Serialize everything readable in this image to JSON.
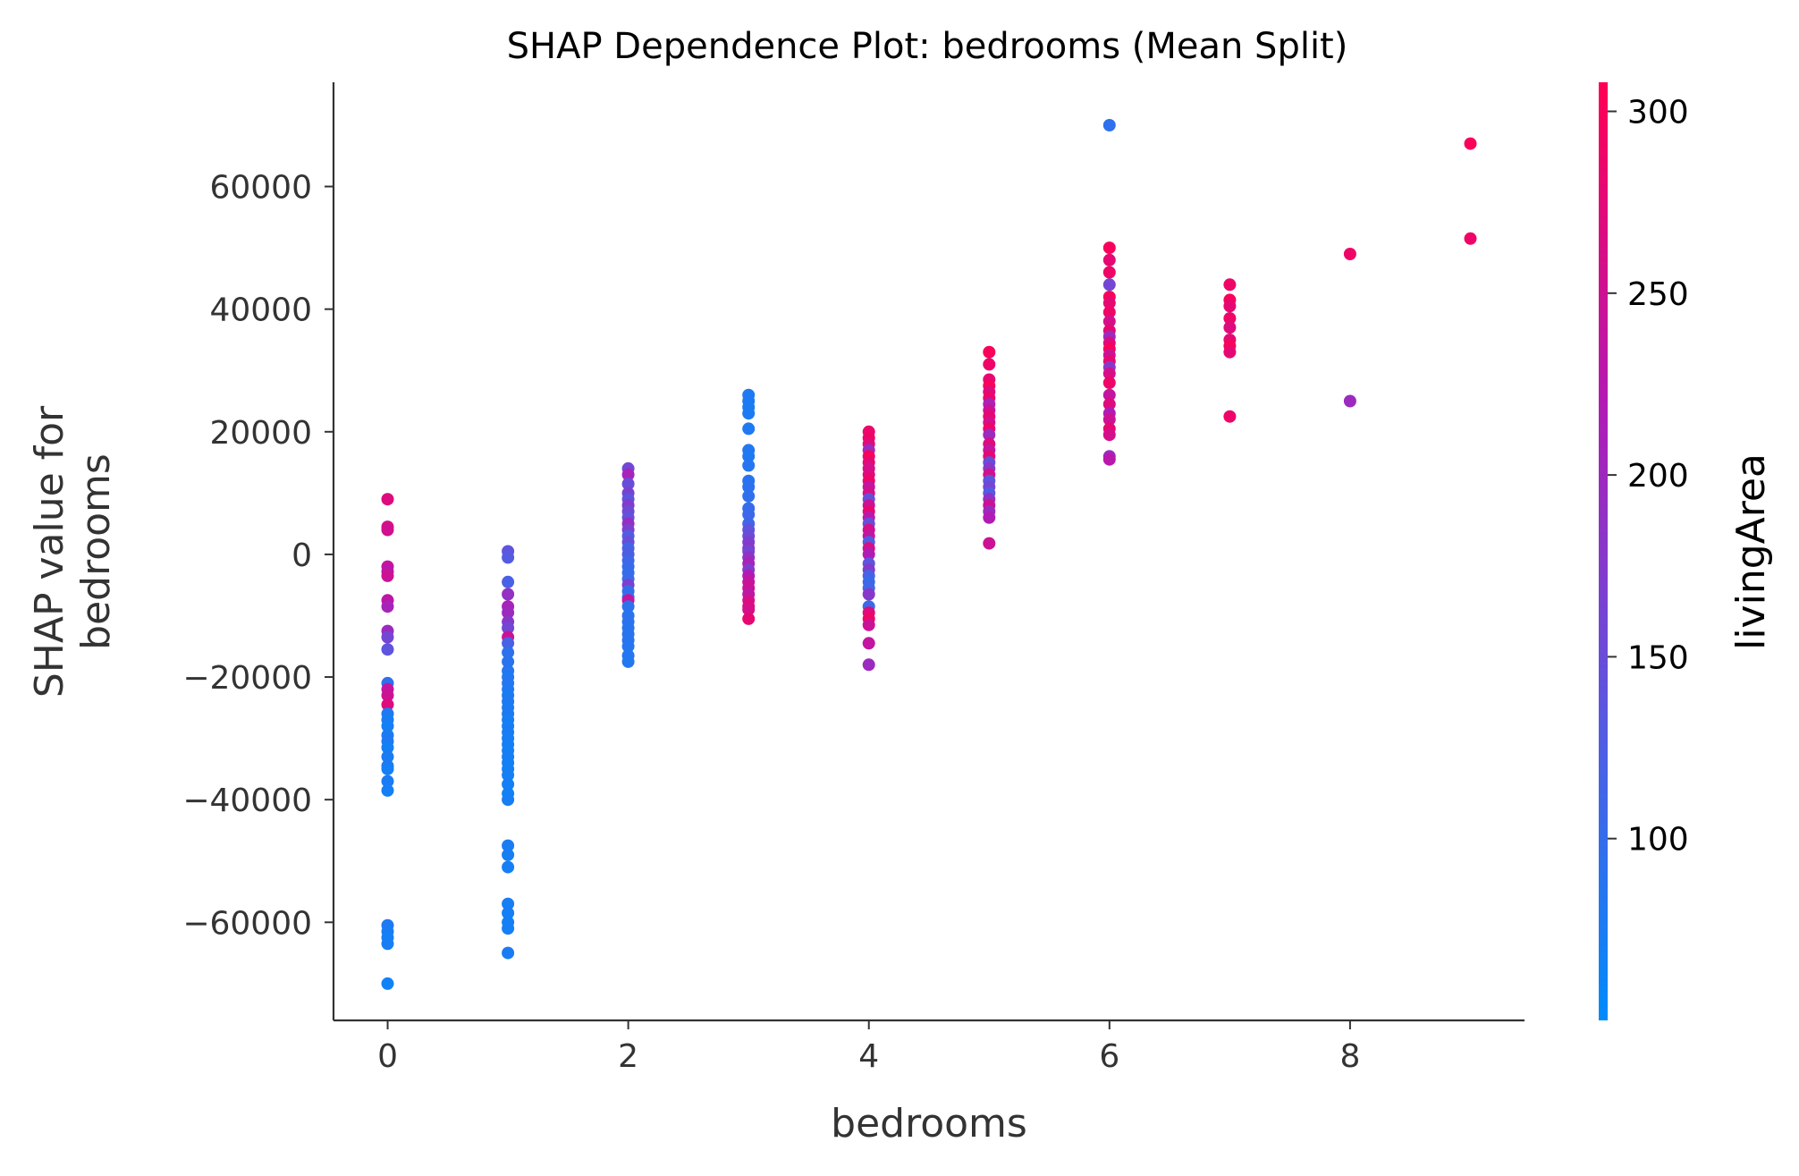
{
  "chart_data": {
    "type": "scatter",
    "title": "SHAP Dependence Plot: bedrooms (Mean Split)",
    "xlabel": "bedrooms",
    "ylabel_lines": [
      "SHAP value for",
      "bedrooms"
    ],
    "xlim": [
      -0.45,
      9.45
    ],
    "ylim": [
      -76000,
      77000
    ],
    "xticks": [
      0,
      2,
      4,
      6,
      8
    ],
    "xtick_labels": [
      "0",
      "2",
      "4",
      "6",
      "8"
    ],
    "yticks": [
      -60000,
      -40000,
      -20000,
      0,
      20000,
      40000,
      60000
    ],
    "ytick_labels": [
      "−60000",
      "−40000",
      "−20000",
      "0",
      "20000",
      "40000",
      "60000"
    ],
    "grid": false,
    "colorbar": {
      "label": "livingArea",
      "range": [
        50,
        308
      ],
      "ticks": [
        100,
        150,
        200,
        250,
        300
      ],
      "tick_labels": [
        "100",
        "150",
        "200",
        "250",
        "300"
      ],
      "colors": [
        "#008bfb",
        "#5a57e0",
        "#b31ab4",
        "#ff0052"
      ]
    },
    "points": [
      [
        0,
        9000,
        270
      ],
      [
        0,
        4500,
        260
      ],
      [
        0,
        4000,
        255
      ],
      [
        0,
        -2000,
        240
      ],
      [
        0,
        -2800,
        230
      ],
      [
        0,
        -3500,
        250
      ],
      [
        0,
        -7500,
        235
      ],
      [
        0,
        -8500,
        210
      ],
      [
        0,
        -12500,
        200
      ],
      [
        0,
        -13500,
        160
      ],
      [
        0,
        -15500,
        140
      ],
      [
        0,
        -21000,
        95
      ],
      [
        0,
        -22000,
        240
      ],
      [
        0,
        -23000,
        250
      ],
      [
        0,
        -24500,
        270
      ],
      [
        0,
        -26000,
        80
      ],
      [
        0,
        -27000,
        75
      ],
      [
        0,
        -28000,
        70
      ],
      [
        0,
        -29500,
        75
      ],
      [
        0,
        -30500,
        80
      ],
      [
        0,
        -31500,
        70
      ],
      [
        0,
        -33000,
        75
      ],
      [
        0,
        -34500,
        80
      ],
      [
        0,
        -35000,
        70
      ],
      [
        0,
        -37000,
        75
      ],
      [
        0,
        -38500,
        70
      ],
      [
        0,
        -60500,
        80
      ],
      [
        0,
        -61500,
        75
      ],
      [
        0,
        -62500,
        70
      ],
      [
        0,
        -63500,
        72
      ],
      [
        0,
        -70000,
        65
      ],
      [
        1,
        500,
        140
      ],
      [
        1,
        -500,
        130
      ],
      [
        1,
        -4500,
        120
      ],
      [
        1,
        -6500,
        190
      ],
      [
        1,
        -8500,
        210
      ],
      [
        1,
        -9500,
        200
      ],
      [
        1,
        -11000,
        180
      ],
      [
        1,
        -12000,
        160
      ],
      [
        1,
        -13500,
        250
      ],
      [
        1,
        -14500,
        120
      ],
      [
        1,
        -16000,
        95
      ],
      [
        1,
        -17500,
        90
      ],
      [
        1,
        -19000,
        85
      ],
      [
        1,
        -20000,
        80
      ],
      [
        1,
        -21000,
        85
      ],
      [
        1,
        -22000,
        80
      ],
      [
        1,
        -23000,
        75
      ],
      [
        1,
        -24000,
        80
      ],
      [
        1,
        -25000,
        75
      ],
      [
        1,
        -26000,
        78
      ],
      [
        1,
        -27000,
        72
      ],
      [
        1,
        -28000,
        70
      ],
      [
        1,
        -29000,
        75
      ],
      [
        1,
        -30000,
        72
      ],
      [
        1,
        -31000,
        70
      ],
      [
        1,
        -32000,
        68
      ],
      [
        1,
        -33000,
        72
      ],
      [
        1,
        -34000,
        70
      ],
      [
        1,
        -35000,
        68
      ],
      [
        1,
        -36000,
        72
      ],
      [
        1,
        -37500,
        70
      ],
      [
        1,
        -39000,
        68
      ],
      [
        1,
        -40000,
        72
      ],
      [
        1,
        -47500,
        75
      ],
      [
        1,
        -49000,
        72
      ],
      [
        1,
        -51000,
        70
      ],
      [
        1,
        -57000,
        72
      ],
      [
        1,
        -58500,
        70
      ],
      [
        1,
        -60000,
        68
      ],
      [
        1,
        -61000,
        70
      ],
      [
        1,
        -65000,
        75
      ],
      [
        2,
        14000,
        160
      ],
      [
        2,
        13000,
        210
      ],
      [
        2,
        11500,
        150
      ],
      [
        2,
        10000,
        165
      ],
      [
        2,
        9000,
        140
      ],
      [
        2,
        8000,
        175
      ],
      [
        2,
        7000,
        155
      ],
      [
        2,
        6000,
        145
      ],
      [
        2,
        5000,
        195
      ],
      [
        2,
        4000,
        170
      ],
      [
        2,
        3000,
        130
      ],
      [
        2,
        2000,
        150
      ],
      [
        2,
        1000,
        115
      ],
      [
        2,
        0,
        125
      ],
      [
        2,
        -1000,
        110
      ],
      [
        2,
        -2000,
        105
      ],
      [
        2,
        -3000,
        100
      ],
      [
        2,
        -4000,
        105
      ],
      [
        2,
        -5000,
        170
      ],
      [
        2,
        -6000,
        100
      ],
      [
        2,
        -7000,
        95
      ],
      [
        2,
        -7500,
        240
      ],
      [
        2,
        -8500,
        95
      ],
      [
        2,
        -10000,
        90
      ],
      [
        2,
        -11000,
        92
      ],
      [
        2,
        -12000,
        88
      ],
      [
        2,
        -13000,
        90
      ],
      [
        2,
        -14000,
        88
      ],
      [
        2,
        -15000,
        85
      ],
      [
        2,
        -16500,
        85
      ],
      [
        2,
        -17500,
        82
      ],
      [
        3,
        26000,
        80
      ],
      [
        3,
        25000,
        78
      ],
      [
        3,
        24000,
        76
      ],
      [
        3,
        23000,
        78
      ],
      [
        3,
        20500,
        80
      ],
      [
        3,
        17000,
        82
      ],
      [
        3,
        16000,
        80
      ],
      [
        3,
        14500,
        85
      ],
      [
        3,
        12000,
        90
      ],
      [
        3,
        11000,
        92
      ],
      [
        3,
        9500,
        95
      ],
      [
        3,
        7500,
        100
      ],
      [
        3,
        6500,
        105
      ],
      [
        3,
        5000,
        110
      ],
      [
        3,
        4000,
        140
      ],
      [
        3,
        3000,
        150
      ],
      [
        3,
        2000,
        170
      ],
      [
        3,
        1000,
        180
      ],
      [
        3,
        500,
        160
      ],
      [
        3,
        -500,
        190
      ],
      [
        3,
        -1500,
        210
      ],
      [
        3,
        -2500,
        175
      ],
      [
        3,
        -3500,
        220
      ],
      [
        3,
        -4500,
        240
      ],
      [
        3,
        -5500,
        250
      ],
      [
        3,
        -6500,
        230
      ],
      [
        3,
        -7500,
        260
      ],
      [
        3,
        -8500,
        270
      ],
      [
        3,
        -9000,
        260
      ],
      [
        3,
        -10500,
        280
      ],
      [
        4,
        20000,
        285
      ],
      [
        4,
        19000,
        290
      ],
      [
        4,
        18000,
        275
      ],
      [
        4,
        17000,
        200
      ],
      [
        4,
        16000,
        300
      ],
      [
        4,
        15000,
        280
      ],
      [
        4,
        14000,
        260
      ],
      [
        4,
        13000,
        270
      ],
      [
        4,
        12000,
        290
      ],
      [
        4,
        11000,
        240
      ],
      [
        4,
        10000,
        260
      ],
      [
        4,
        9000,
        150
      ],
      [
        4,
        8000,
        250
      ],
      [
        4,
        7000,
        280
      ],
      [
        4,
        6000,
        230
      ],
      [
        4,
        5000,
        150
      ],
      [
        4,
        4000,
        255
      ],
      [
        4,
        3000,
        240
      ],
      [
        4,
        2000,
        130
      ],
      [
        4,
        1000,
        260
      ],
      [
        4,
        0,
        220
      ],
      [
        4,
        -1500,
        140
      ],
      [
        4,
        -2500,
        175
      ],
      [
        4,
        -3500,
        120
      ],
      [
        4,
        -4500,
        105
      ],
      [
        4,
        -5500,
        110
      ],
      [
        4,
        -6500,
        180
      ],
      [
        4,
        -8500,
        105
      ],
      [
        4,
        -9500,
        270
      ],
      [
        4,
        -10500,
        290
      ],
      [
        4,
        -11500,
        250
      ],
      [
        4,
        -14500,
        240
      ],
      [
        4,
        -18000,
        200
      ],
      [
        5,
        33000,
        300
      ],
      [
        5,
        31000,
        290
      ],
      [
        5,
        28500,
        280
      ],
      [
        5,
        27500,
        300
      ],
      [
        5,
        26500,
        270
      ],
      [
        5,
        25500,
        290
      ],
      [
        5,
        24500,
        210
      ],
      [
        5,
        23500,
        250
      ],
      [
        5,
        22500,
        280
      ],
      [
        5,
        21500,
        260
      ],
      [
        5,
        20500,
        290
      ],
      [
        5,
        19500,
        200
      ],
      [
        5,
        18000,
        270
      ],
      [
        5,
        17000,
        240
      ],
      [
        5,
        16000,
        280
      ],
      [
        5,
        15000,
        150
      ],
      [
        5,
        14000,
        180
      ],
      [
        5,
        13000,
        260
      ],
      [
        5,
        12000,
        140
      ],
      [
        5,
        11000,
        160
      ],
      [
        5,
        10000,
        130
      ],
      [
        5,
        9000,
        190
      ],
      [
        5,
        8000,
        250
      ],
      [
        5,
        7000,
        200
      ],
      [
        5,
        6000,
        220
      ],
      [
        5,
        1800,
        250
      ],
      [
        6,
        70000,
        95
      ],
      [
        6,
        50000,
        300
      ],
      [
        6,
        48000,
        280
      ],
      [
        6,
        46000,
        290
      ],
      [
        6,
        44000,
        160
      ],
      [
        6,
        42000,
        300
      ],
      [
        6,
        41000,
        280
      ],
      [
        6,
        39500,
        290
      ],
      [
        6,
        38000,
        260
      ],
      [
        6,
        36500,
        280
      ],
      [
        6,
        35500,
        200
      ],
      [
        6,
        34500,
        270
      ],
      [
        6,
        33500,
        300
      ],
      [
        6,
        32500,
        250
      ],
      [
        6,
        31500,
        280
      ],
      [
        6,
        30500,
        180
      ],
      [
        6,
        29500,
        260
      ],
      [
        6,
        28000,
        290
      ],
      [
        6,
        26000,
        240
      ],
      [
        6,
        24500,
        270
      ],
      [
        6,
        23000,
        220
      ],
      [
        6,
        22000,
        250
      ],
      [
        6,
        20500,
        280
      ],
      [
        6,
        19500,
        260
      ],
      [
        6,
        16000,
        200
      ],
      [
        6,
        15500,
        230
      ],
      [
        7,
        44000,
        290
      ],
      [
        7,
        41500,
        300
      ],
      [
        7,
        40500,
        280
      ],
      [
        7,
        38500,
        290
      ],
      [
        7,
        37000,
        270
      ],
      [
        7,
        35000,
        280
      ],
      [
        7,
        34000,
        300
      ],
      [
        7,
        33000,
        280
      ],
      [
        7,
        22500,
        290
      ],
      [
        8,
        49000,
        290
      ],
      [
        8,
        25000,
        200
      ],
      [
        9,
        67000,
        300
      ],
      [
        9,
        51500,
        290
      ]
    ]
  }
}
